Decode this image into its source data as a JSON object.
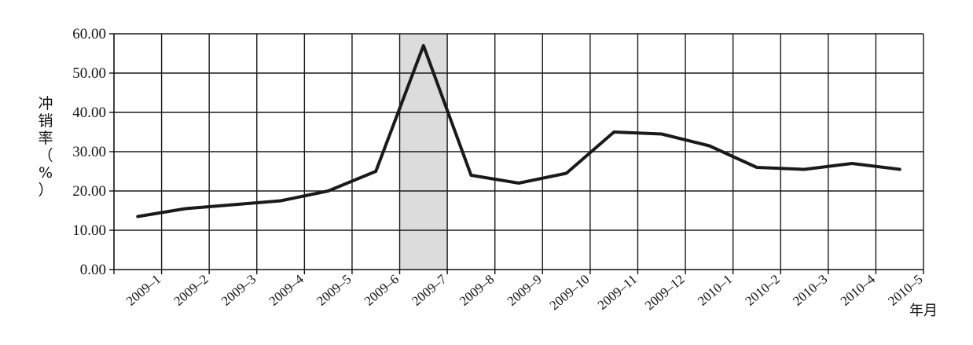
{
  "chart_data": {
    "type": "line",
    "categories": [
      "2009-1",
      "2009-2",
      "2009-3",
      "2009-4",
      "2009-5",
      "2009-6",
      "2009-7",
      "2009-8",
      "2009-9",
      "2009-10",
      "2009-11",
      "2009-12",
      "2010-1",
      "2010-2",
      "2010-3",
      "2010-4",
      "2010-5"
    ],
    "values": [
      13.5,
      15.5,
      16.5,
      17.5,
      20.0,
      25.0,
      57.0,
      24.0,
      22.0,
      24.5,
      35.0,
      34.5,
      31.5,
      26.0,
      25.5,
      27.0,
      25.5
    ],
    "ylabel": [
      "冲",
      "销",
      "率",
      "（",
      "%",
      "）"
    ],
    "xlabel": "年月",
    "ylim": [
      0,
      60
    ],
    "yticks": [
      "0.00",
      "10.00",
      "20.00",
      "30.00",
      "40.00",
      "50.00",
      "60.00"
    ],
    "highlight_category": "2009-7",
    "grid": true,
    "colors": {
      "line": "#1a1a1a",
      "grid": "#1a1a1a",
      "highlight": "#dcdcdc"
    }
  }
}
